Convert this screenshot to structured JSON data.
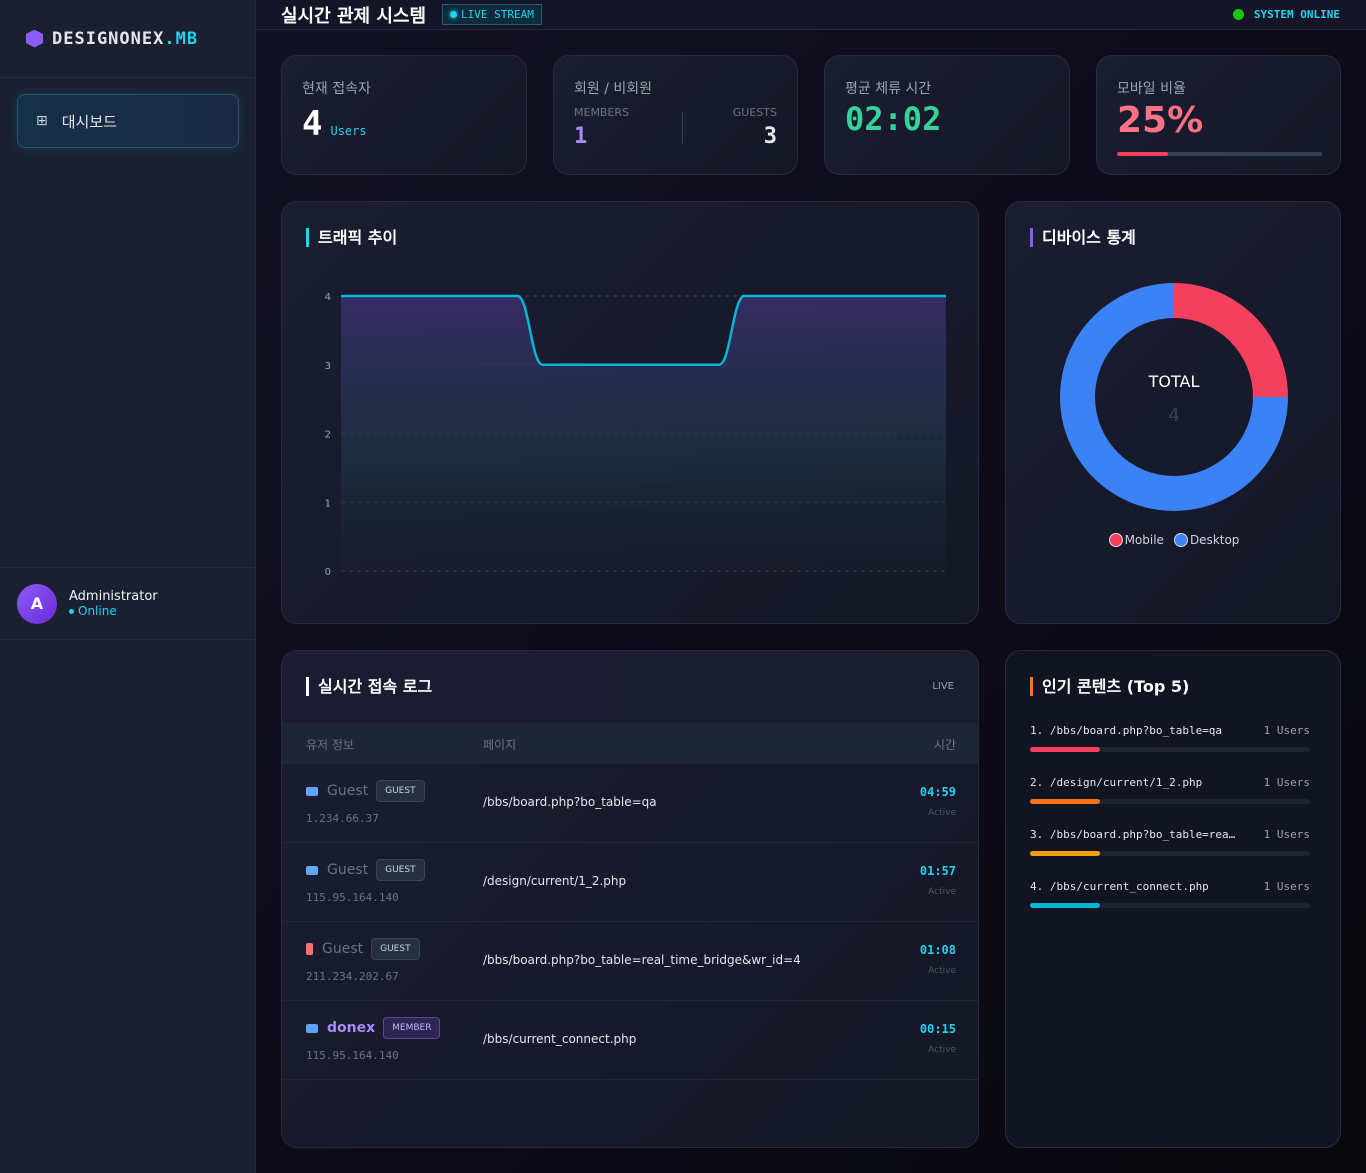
{
  "sidebar": {
    "brand_main": "DESIGNONEX",
    "brand_accent": ".MB",
    "nav": [
      {
        "label": "대시보드",
        "icon": "grid-icon"
      }
    ],
    "user": {
      "initial": "A",
      "name": "Administrator",
      "status": "Online"
    }
  },
  "header": {
    "title": "실시간 관제 시스템",
    "live_label": "LIVE STREAM",
    "system_status": "SYSTEM ONLINE"
  },
  "stats": {
    "current": {
      "label": "현재 접속자",
      "value": "4",
      "unit": "Users"
    },
    "members": {
      "label": "회원 / 비회원",
      "members_label": "MEMBERS",
      "members_value": "1",
      "guests_label": "GUESTS",
      "guests_value": "3"
    },
    "avg_time": {
      "label": "평균 체류 시간",
      "value": "02:02"
    },
    "mobile": {
      "label": "모바일 비율",
      "value": "25%",
      "percent": 25
    }
  },
  "colors": {
    "accent": "#22d3ee",
    "mobile": "#f43f5e",
    "desktop": "#3b82f6",
    "purple": "#8b5cf6",
    "green": "#34d399"
  },
  "traffic": {
    "title": "트래픽 추이"
  },
  "devices": {
    "title": "디바이스 통계",
    "total_label": "TOTAL",
    "total_value": "4"
  },
  "chart_data": [
    {
      "type": "area",
      "title": "트래픽 추이",
      "ylim": [
        0,
        4
      ],
      "yticks": [
        "0",
        "1",
        "2",
        "3",
        "4"
      ],
      "grid": true,
      "series": [
        {
          "values": [
            4,
            4,
            4,
            4,
            4,
            4,
            4,
            4,
            3,
            3,
            3,
            3,
            3,
            3,
            3,
            3,
            4,
            4,
            4,
            4,
            4,
            4,
            4,
            4,
            4
          ]
        }
      ]
    },
    {
      "type": "pie",
      "title": "디바이스 통계",
      "categories": [
        "Mobile",
        "Desktop"
      ],
      "values": [
        1,
        3
      ],
      "legend": "bottom",
      "colors": [
        "#f43f5e",
        "#3b82f6"
      ]
    }
  ],
  "log": {
    "title": "실시간 접속 로그",
    "live": "LIVE",
    "columns": [
      "유저 정보",
      "페이지",
      "시간"
    ],
    "rows": [
      {
        "name": "Guest",
        "badge": "GUEST",
        "ip": "1.234.66.37",
        "page": "/bbs/board.php?bo_table=qa",
        "time": "04:59",
        "status": "Active",
        "device": "desktop-icon"
      },
      {
        "name": "Guest",
        "badge": "GUEST",
        "ip": "115.95.164.140",
        "page": "/design/current/1_2.php",
        "time": "01:57",
        "status": "Active",
        "device": "desktop-icon"
      },
      {
        "name": "Guest",
        "badge": "GUEST",
        "ip": "211.234.202.67",
        "page": "/bbs/board.php?bo_table=real_time_bridge&wr_id=4",
        "time": "01:08",
        "status": "Active",
        "device": "mobile-icon"
      },
      {
        "name": "donex",
        "badge": "MEMBER",
        "ip": "115.95.164.140",
        "page": "/bbs/current_connect.php",
        "time": "00:15",
        "status": "Active",
        "device": "desktop-icon"
      }
    ]
  },
  "popular": {
    "title": "인기 콘텐츠 (Top 5)",
    "items": [
      {
        "label": "1. /bbs/board.php?bo_table=qa",
        "count": "1 Users",
        "percent": 25,
        "color": "#f43f5e"
      },
      {
        "label": "2. /design/current/1_2.php",
        "count": "1 Users",
        "percent": 25,
        "color": "#f97316"
      },
      {
        "label": "3. /bbs/board.php?bo_table=rea…",
        "count": "1 Users",
        "percent": 25,
        "color": "#f59e0b"
      },
      {
        "label": "4. /bbs/current_connect.php",
        "count": "1 Users",
        "percent": 25,
        "color": "#06b6d4"
      }
    ]
  }
}
